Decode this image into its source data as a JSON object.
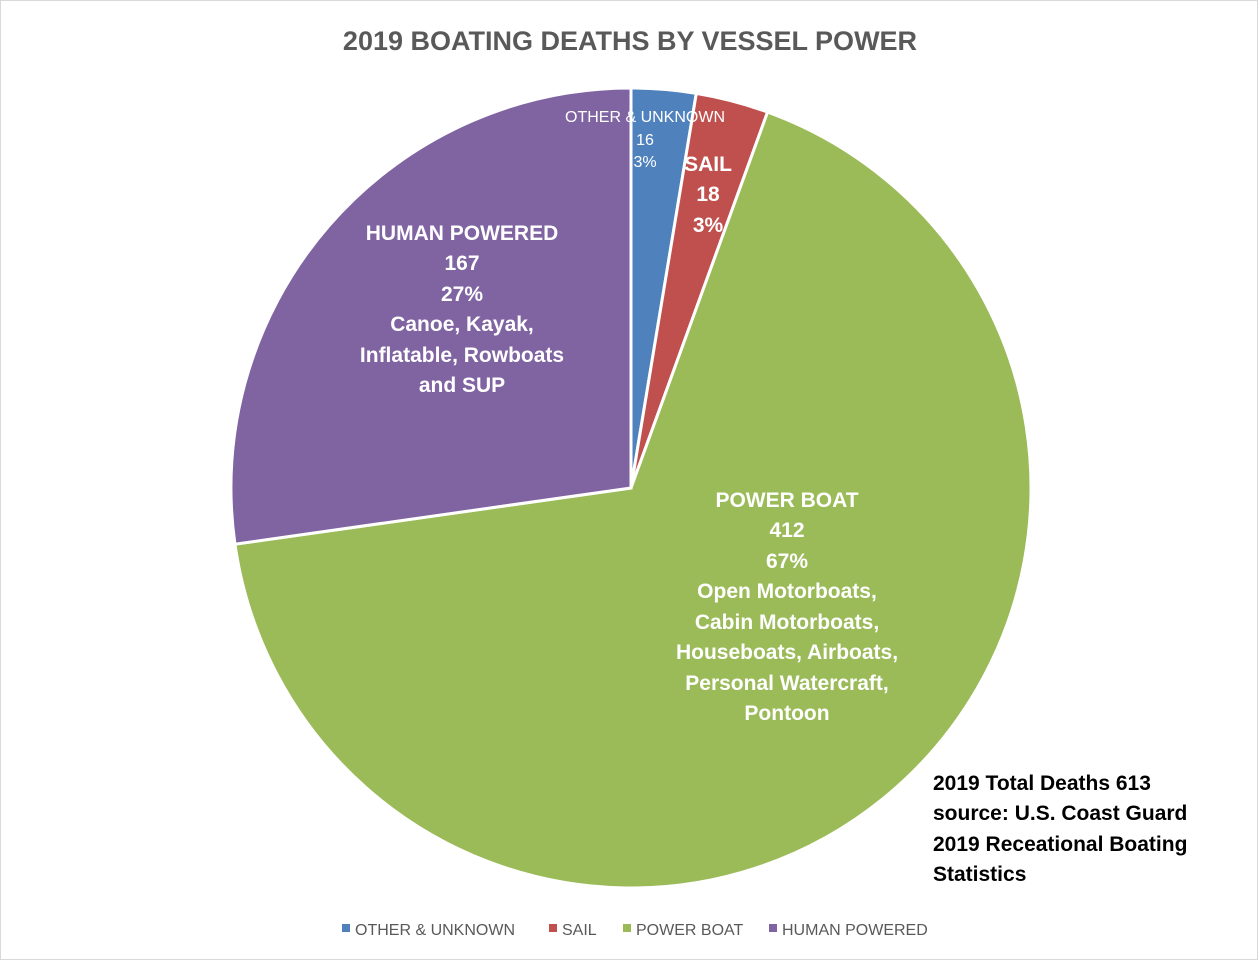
{
  "chart_data": {
    "type": "pie",
    "title": "2019 BOATING DEATHS BY VESSEL POWER",
    "start_angle": "12 o'clock, clockwise",
    "slices": [
      {
        "name": "OTHER  & UNKNOWN",
        "value": 16,
        "percent": "3%",
        "color": "#4F81BD",
        "details": []
      },
      {
        "name": "SAIL",
        "value": 18,
        "percent": "3%",
        "color": "#C0504D",
        "details": []
      },
      {
        "name": "POWER BOAT",
        "value": 412,
        "percent": "67%",
        "color": "#9BBB59",
        "details": [
          "Open Motorboats,",
          "Cabin Motorboats,",
          "Houseboats, Airboats,",
          "Personal Watercraft,",
          "Pontoon"
        ]
      },
      {
        "name": "HUMAN POWERED",
        "value": 167,
        "percent": "27%",
        "color": "#8064A2",
        "details": [
          "Canoe, Kayak,",
          "Inflatable, Rowboats",
          "and SUP"
        ]
      }
    ],
    "legend": {
      "position": "bottom",
      "entries": [
        "OTHER  & UNKNOWN",
        "SAIL",
        "POWER BOAT",
        "HUMAN POWERED"
      ]
    },
    "annotation": [
      "2019 Total Deaths 613",
      "source: U.S. Coast Guard",
      "2019 Receational Boating",
      "Statistics"
    ]
  }
}
